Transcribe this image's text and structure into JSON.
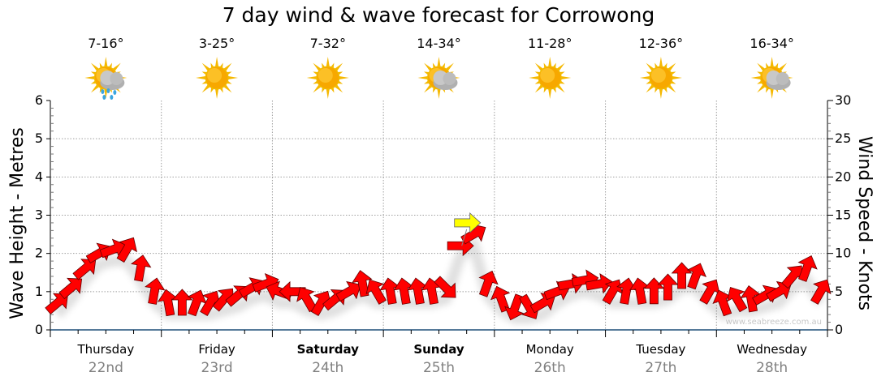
{
  "title": "7 day wind & wave forecast for Corrowong",
  "days": [
    {
      "day": "Thursday",
      "date": "22nd",
      "temp": "7-16°",
      "icon": "sun-cloud-rain-icon",
      "bold": false
    },
    {
      "day": "Friday",
      "date": "23rd",
      "temp": "3-25°",
      "icon": "sun-icon",
      "bold": false
    },
    {
      "day": "Saturday",
      "date": "24th",
      "temp": "7-32°",
      "icon": "sun-icon",
      "bold": true
    },
    {
      "day": "Sunday",
      "date": "25th",
      "temp": "14-34°",
      "icon": "sun-cloud-icon",
      "bold": true
    },
    {
      "day": "Monday",
      "date": "26th",
      "temp": "11-28°",
      "icon": "sun-icon",
      "bold": false
    },
    {
      "day": "Tuesday",
      "date": "27th",
      "temp": "12-36°",
      "icon": "sun-icon",
      "bold": false
    },
    {
      "day": "Wednesday",
      "date": "28th",
      "temp": "16-34°",
      "icon": "sun-cloud-icon",
      "bold": false
    }
  ],
  "watermark": "www.seabreeze.com.au",
  "chart_data": {
    "type": "scatter",
    "title": "7 day wind & wave forecast for Corrowong",
    "ylabel_left": "Wave Height - Metres",
    "ylabel_right": "Wind Speed - Knots",
    "ylim_left": [
      0,
      6
    ],
    "ylim_right": [
      0,
      30
    ],
    "yticks_left": [
      "0",
      "1",
      "2",
      "3",
      "4",
      "5",
      "6"
    ],
    "yticks_right": [
      "0",
      "5",
      "10",
      "15",
      "20",
      "25",
      "30"
    ],
    "grid": true,
    "samples_per_day": 8,
    "wind_knots": [
      3.5,
      5.5,
      8,
      10,
      10.5,
      10.5,
      8,
      5,
      3.5,
      3.5,
      3.5,
      3.5,
      4,
      4.5,
      5.5,
      6,
      5,
      5,
      4,
      3.5,
      4,
      5,
      6,
      5,
      5,
      5,
      5,
      5,
      5.5,
      11,
      12.5,
      6,
      4,
      3,
      3,
      3.5,
      5,
      6,
      6.5,
      6,
      5,
      5,
      5,
      5,
      5.5,
      7,
      7,
      5,
      3.5,
      4,
      4,
      4.5,
      5,
      7,
      8,
      5
    ],
    "wind_arrow_angle_deg": [
      -40,
      -40,
      -40,
      -30,
      -20,
      -60,
      -80,
      -80,
      -100,
      -90,
      -70,
      -60,
      -50,
      -40,
      -30,
      -20,
      200,
      180,
      -120,
      -60,
      -40,
      -30,
      -100,
      -120,
      -100,
      -100,
      -100,
      -100,
      45,
      0,
      -30,
      -70,
      -110,
      110,
      60,
      -30,
      -20,
      -10,
      -10,
      -10,
      -60,
      -80,
      -100,
      -90,
      -90,
      -90,
      -70,
      -60,
      -110,
      -120,
      -100,
      -30,
      -30,
      -50,
      -70,
      -60
    ],
    "highlight": {
      "sample_index": 29.5,
      "knots": 14,
      "angle_deg": 0
    },
    "colors": {
      "arrow": "#ff0000",
      "highlight": "#ffff00",
      "grid": "#a0a0a0",
      "axis": "#1f4e79"
    }
  }
}
